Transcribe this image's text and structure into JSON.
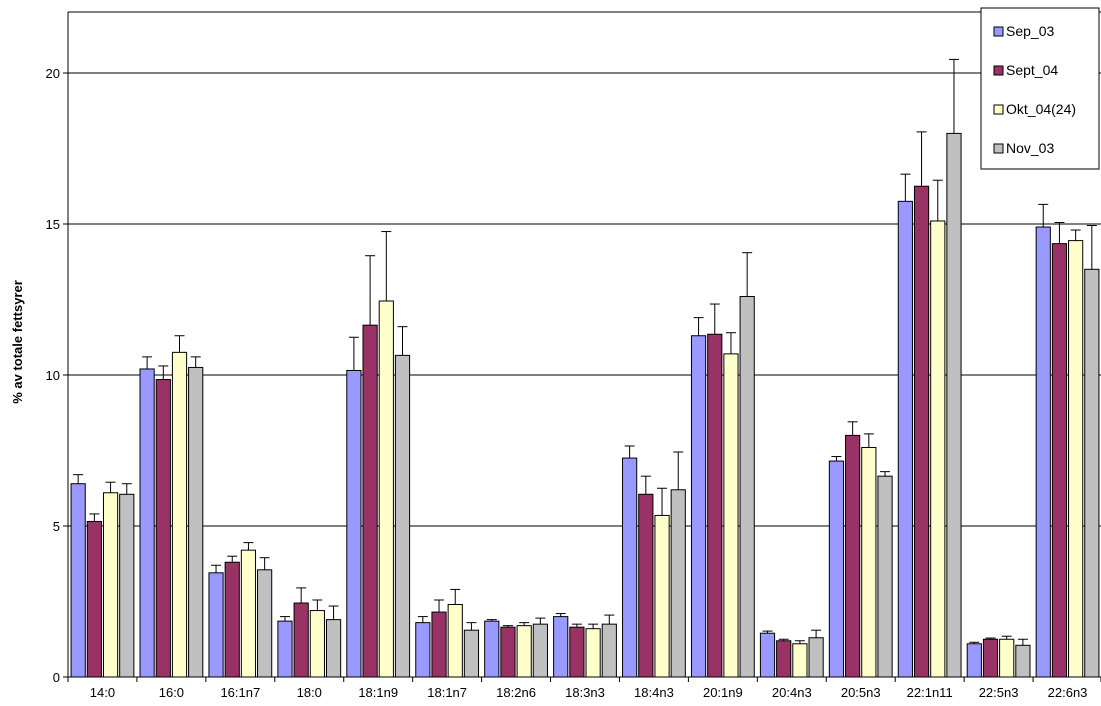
{
  "chart_data": {
    "type": "bar",
    "title": "",
    "xlabel": "",
    "ylabel": "% av totale fettsyrer",
    "ylim": [
      0,
      22
    ],
    "yticks": [
      0,
      5,
      10,
      15,
      20
    ],
    "grid": true,
    "legend_position": "top-right",
    "categories": [
      "14:0",
      "16:0",
      "16:1n7",
      "18:0",
      "18:1n9",
      "18:1n7",
      "18:2n6",
      "18:3n3",
      "18:4n3",
      "20:1n9",
      "20:4n3",
      "20:5n3",
      "22:1n11",
      "22:5n3",
      "22:6n3"
    ],
    "series": [
      {
        "name": "Sep_03",
        "color": "#9999ff",
        "values": [
          6.4,
          10.2,
          3.45,
          1.85,
          10.15,
          1.8,
          1.85,
          2.0,
          7.25,
          11.3,
          1.45,
          7.15,
          15.75,
          1.1,
          14.9
        ],
        "errors": [
          0.3,
          0.4,
          0.25,
          0.15,
          1.1,
          0.2,
          0.05,
          0.1,
          0.4,
          0.6,
          0.07,
          0.15,
          0.9,
          0.05,
          0.75
        ]
      },
      {
        "name": "Sept_04",
        "color": "#993366",
        "values": [
          5.15,
          9.85,
          3.8,
          2.45,
          11.65,
          2.15,
          1.65,
          1.65,
          6.05,
          11.35,
          1.2,
          8.0,
          16.25,
          1.25,
          14.35
        ],
        "errors": [
          0.25,
          0.45,
          0.2,
          0.5,
          2.3,
          0.4,
          0.05,
          0.1,
          0.6,
          1.0,
          0.05,
          0.45,
          1.8,
          0.04,
          0.7
        ]
      },
      {
        "name": "Okt_04(24)",
        "color": "#ffffcc",
        "values": [
          6.1,
          10.75,
          4.2,
          2.2,
          12.45,
          2.4,
          1.7,
          1.6,
          5.35,
          10.7,
          1.1,
          7.6,
          15.1,
          1.25,
          14.45
        ],
        "errors": [
          0.35,
          0.55,
          0.25,
          0.35,
          2.3,
          0.5,
          0.1,
          0.15,
          0.9,
          0.7,
          0.1,
          0.45,
          1.35,
          0.1,
          0.35
        ]
      },
      {
        "name": "Nov_03",
        "color": "#c0c0c0",
        "values": [
          6.05,
          10.25,
          3.55,
          1.9,
          10.65,
          1.55,
          1.75,
          1.75,
          6.2,
          12.6,
          1.3,
          6.65,
          18.0,
          1.05,
          13.5
        ],
        "errors": [
          0.35,
          0.35,
          0.4,
          0.45,
          0.95,
          0.25,
          0.2,
          0.3,
          1.25,
          1.45,
          0.25,
          0.15,
          2.45,
          0.2,
          1.45
        ]
      }
    ]
  }
}
